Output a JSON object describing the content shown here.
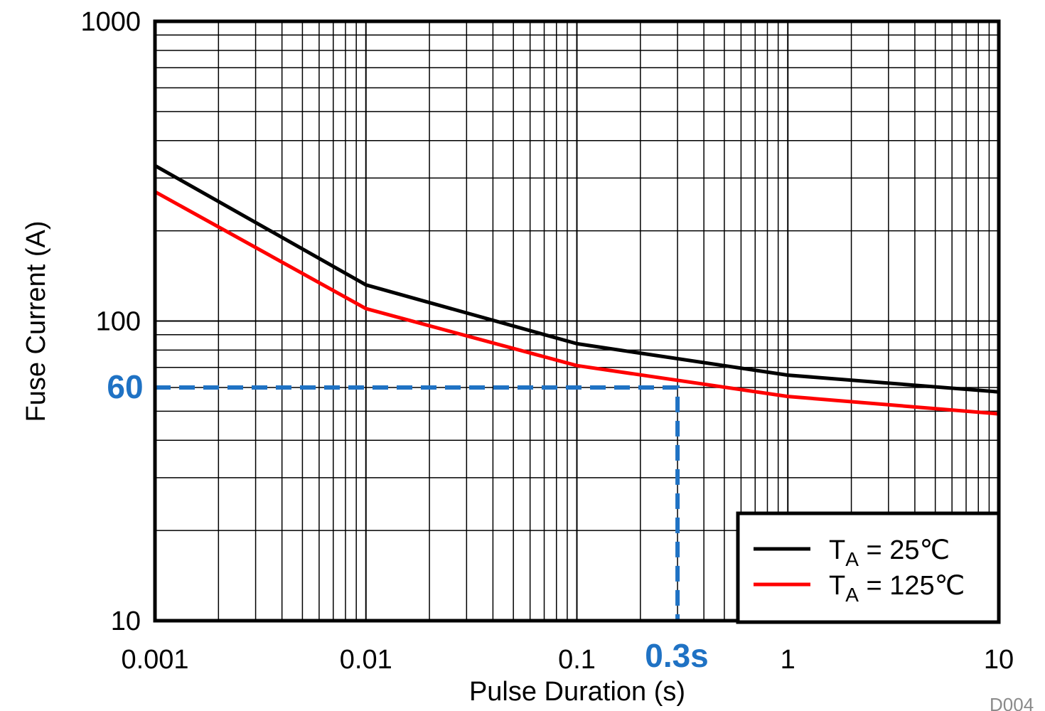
{
  "chart_data": {
    "type": "line",
    "xlabel": "Pulse Duration (s)",
    "ylabel": "Fuse Current (A)",
    "x_scale": "log",
    "y_scale": "log",
    "xlim": [
      0.001,
      10
    ],
    "ylim": [
      10,
      1000
    ],
    "grid": true,
    "x_ticks": [
      {
        "value": 0.001,
        "label": "0.001"
      },
      {
        "value": 0.01,
        "label": "0.01"
      },
      {
        "value": 0.1,
        "label": "0.1"
      },
      {
        "value": 1,
        "label": "1"
      },
      {
        "value": 10,
        "label": "10"
      }
    ],
    "y_ticks": [
      {
        "value": 10,
        "label": "10"
      },
      {
        "value": 100,
        "label": "100"
      },
      {
        "value": 1000,
        "label": "1000"
      }
    ],
    "series": [
      {
        "name": "T_A = 25°C",
        "legend_main": "T",
        "legend_sub": "A",
        "legend_rest": " = 25℃",
        "color": "#000000",
        "x": [
          0.001,
          0.01,
          0.1,
          1,
          10
        ],
        "y": [
          330,
          132,
          84,
          66,
          58
        ]
      },
      {
        "name": "T_A = 125°C",
        "legend_main": "T",
        "legend_sub": "A",
        "legend_rest": " = 125℃",
        "color": "#ff0000",
        "x": [
          0.001,
          0.01,
          0.1,
          1,
          10
        ],
        "y": [
          270,
          110,
          71,
          56,
          49
        ]
      }
    ],
    "legend_position": "bottom-right",
    "annotations": [
      {
        "type": "hline-to-point",
        "x": 0.3,
        "y": 60,
        "color": "#1f72c4"
      },
      {
        "type": "text",
        "text": "60",
        "color": "#1f72c4"
      },
      {
        "type": "text",
        "text": "0.3s",
        "color": "#1f72c4"
      }
    ],
    "watermark": "D004"
  }
}
